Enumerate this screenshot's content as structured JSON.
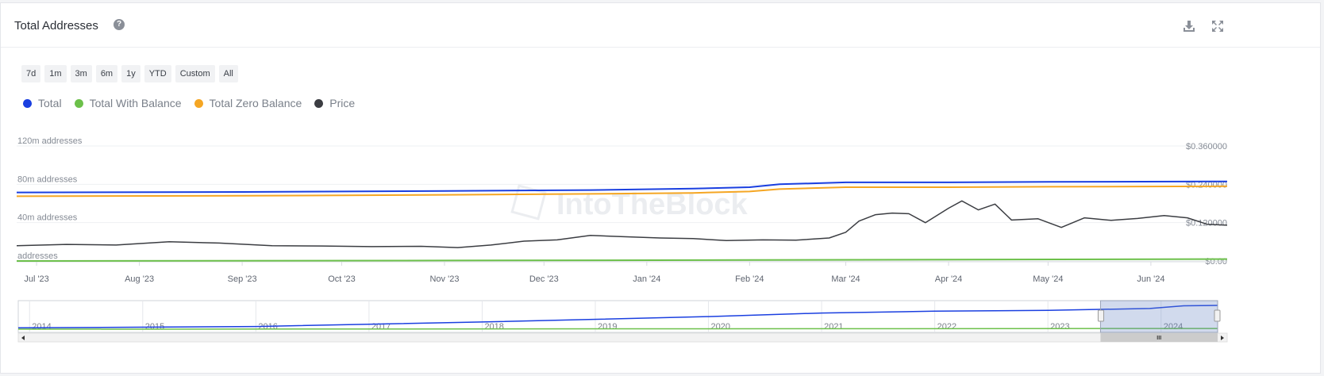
{
  "header": {
    "title": "Total Addresses"
  },
  "range_buttons": [
    "7d",
    "1m",
    "3m",
    "6m",
    "1y",
    "YTD",
    "Custom",
    "All"
  ],
  "watermark": "IntoTheBlock",
  "chart_data": {
    "type": "line",
    "legend": [
      {
        "name": "Total",
        "color": "#1a3fe0"
      },
      {
        "name": "Total With Balance",
        "color": "#6cc04a"
      },
      {
        "name": "Total Zero Balance",
        "color": "#f5a623"
      },
      {
        "name": "Price",
        "color": "#3b3d42"
      }
    ],
    "left_axis": {
      "ticks": [
        {
          "value": 0,
          "label": "addresses"
        },
        {
          "value": 40,
          "label": "40m addresses"
        },
        {
          "value": 80,
          "label": "80m addresses"
        },
        {
          "value": 120,
          "label": "120m addresses"
        }
      ],
      "range": [
        0,
        120
      ]
    },
    "right_axis": {
      "ticks": [
        {
          "value": 0,
          "label": "$0.00"
        },
        {
          "value": 0.12,
          "label": "$0.120000"
        },
        {
          "value": 0.24,
          "label": "$0.240000"
        },
        {
          "value": 0.36,
          "label": "$0.360000"
        }
      ],
      "range": [
        0,
        0.36
      ]
    },
    "x_axis": {
      "labels": [
        "Jul '23",
        "Aug '23",
        "Sep '23",
        "Oct '23",
        "Nov '23",
        "Dec '23",
        "Jan '24",
        "Feb '24",
        "Mar '24",
        "Apr '24",
        "May '24",
        "Jun '24"
      ],
      "range": [
        "2023-06-25",
        "2024-06-24"
      ]
    },
    "series": [
      {
        "name": "Total",
        "axis": "left",
        "points": [
          [
            "2023-06-25",
            71.5
          ],
          [
            "2023-09-01",
            72
          ],
          [
            "2023-11-01",
            73
          ],
          [
            "2023-12-15",
            74
          ],
          [
            "2024-01-15",
            75.5
          ],
          [
            "2024-02-01",
            77
          ],
          [
            "2024-02-10",
            80
          ],
          [
            "2024-03-01",
            82
          ],
          [
            "2024-04-01",
            82
          ],
          [
            "2024-05-01",
            82.5
          ],
          [
            "2024-06-24",
            83
          ]
        ]
      },
      {
        "name": "Total Zero Balance",
        "axis": "left",
        "points": [
          [
            "2023-06-25",
            67.5
          ],
          [
            "2023-09-01",
            68
          ],
          [
            "2023-11-01",
            69
          ],
          [
            "2023-12-15",
            70
          ],
          [
            "2024-01-15",
            71
          ],
          [
            "2024-02-01",
            72.5
          ],
          [
            "2024-02-10",
            75
          ],
          [
            "2024-03-01",
            77
          ],
          [
            "2024-04-01",
            77
          ],
          [
            "2024-05-01",
            77.5
          ],
          [
            "2024-06-24",
            78
          ]
        ]
      },
      {
        "name": "Total With Balance",
        "axis": "left",
        "points": [
          [
            "2023-06-25",
            0
          ],
          [
            "2023-11-01",
            0.5
          ],
          [
            "2024-02-01",
            1
          ],
          [
            "2024-06-24",
            2
          ]
        ]
      },
      {
        "name": "Price",
        "axis": "right",
        "points": [
          [
            "2023-06-25",
            0.048
          ],
          [
            "2023-07-10",
            0.052
          ],
          [
            "2023-07-25",
            0.05
          ],
          [
            "2023-08-10",
            0.06
          ],
          [
            "2023-08-25",
            0.056
          ],
          [
            "2023-09-10",
            0.048
          ],
          [
            "2023-09-25",
            0.047
          ],
          [
            "2023-10-10",
            0.045
          ],
          [
            "2023-10-25",
            0.046
          ],
          [
            "2023-11-05",
            0.042
          ],
          [
            "2023-11-15",
            0.05
          ],
          [
            "2023-11-25",
            0.062
          ],
          [
            "2023-12-05",
            0.066
          ],
          [
            "2023-12-15",
            0.08
          ],
          [
            "2023-12-25",
            0.076
          ],
          [
            "2024-01-05",
            0.072
          ],
          [
            "2024-01-15",
            0.07
          ],
          [
            "2024-01-25",
            0.064
          ],
          [
            "2024-02-05",
            0.066
          ],
          [
            "2024-02-15",
            0.065
          ],
          [
            "2024-02-25",
            0.072
          ],
          [
            "2024-03-01",
            0.09
          ],
          [
            "2024-03-05",
            0.125
          ],
          [
            "2024-03-10",
            0.145
          ],
          [
            "2024-03-15",
            0.15
          ],
          [
            "2024-03-20",
            0.148
          ],
          [
            "2024-03-25",
            0.12
          ],
          [
            "2024-04-01",
            0.165
          ],
          [
            "2024-04-05",
            0.188
          ],
          [
            "2024-04-10",
            0.16
          ],
          [
            "2024-04-15",
            0.178
          ],
          [
            "2024-04-20",
            0.128
          ],
          [
            "2024-04-28",
            0.132
          ],
          [
            "2024-05-05",
            0.105
          ],
          [
            "2024-05-12",
            0.135
          ],
          [
            "2024-05-20",
            0.127
          ],
          [
            "2024-05-28",
            0.133
          ],
          [
            "2024-06-05",
            0.142
          ],
          [
            "2024-06-12",
            0.135
          ],
          [
            "2024-06-18",
            0.115
          ],
          [
            "2024-06-24",
            0.112
          ]
        ]
      }
    ],
    "navigator": {
      "year_labels": [
        "2014",
        "2015",
        "2016",
        "2017",
        "2018",
        "2019",
        "2020",
        "2021",
        "2022",
        "2023",
        "2024"
      ],
      "total_points": [
        [
          2013.9,
          1.5
        ],
        [
          2016,
          3
        ],
        [
          2018,
          8
        ],
        [
          2020,
          14
        ],
        [
          2021,
          18
        ],
        [
          2022,
          20
        ],
        [
          2023,
          21
        ],
        [
          2023.9,
          23
        ],
        [
          2024.2,
          26
        ],
        [
          2024.5,
          26.5
        ]
      ],
      "balance_points": [
        [
          2013.9,
          0
        ],
        [
          2024.5,
          0.8
        ]
      ],
      "selection": [
        2023.5,
        2024.5
      ]
    }
  }
}
